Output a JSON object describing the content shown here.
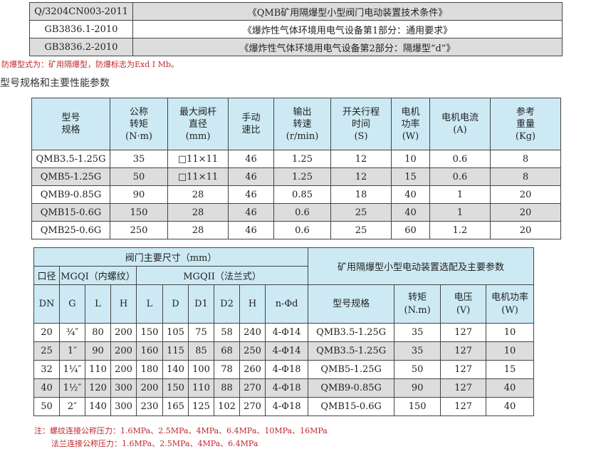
{
  "standards": [
    {
      "code": "Q/3204CN003-2011",
      "title": "《QMB矿用隔爆型小型阀门电动装置技术条件》"
    },
    {
      "code": "GB3836.1-2010",
      "title": "《爆炸性气体环境用电气设备第1部分：通用要求》"
    },
    {
      "code": "GB3836.2-2010",
      "title": "《爆炸性气体环境用电气设备第2部分：隔爆型“d”》"
    }
  ],
  "explosion_note": "防爆型式为：矿用隔爆型，防爆标志为Exd I  Mb。",
  "section_heading": "型号规格和主要性能参数",
  "perf_table": {
    "headers": [
      "型号\n规格",
      "公称\n转矩\n(N·m)",
      "最大阀杆\n直径\n(mm)",
      "手动\n速比",
      "输出\n转速\n(r/min)",
      "开关行程\n时间\n(S)",
      "电机\n功率\n(W)",
      "电机电流\n(A)",
      "参考\n重量\n(Kg)"
    ],
    "rows": [
      [
        "QMB3.5-1.25G",
        "35",
        "□11×11",
        "46",
        "1.25",
        "12",
        "10",
        "0.6",
        "8"
      ],
      [
        "QMB5-1.25G",
        "50",
        "□11×11",
        "46",
        "1.25",
        "12",
        "15",
        "0.6",
        "8"
      ],
      [
        "QMB9-0.85G",
        "90",
        "28",
        "46",
        "0.85",
        "18",
        "40",
        "1",
        "20"
      ],
      [
        "QMB15-0.6G",
        "150",
        "28",
        "46",
        "0.6",
        "25",
        "40",
        "1",
        "20"
      ],
      [
        "QMB25-0.6G",
        "250",
        "28",
        "46",
        "0.6",
        "25",
        "60",
        "1.2",
        "20"
      ]
    ]
  },
  "dim_table": {
    "group_title": "阀门主要尺寸（mm）",
    "selection_title": "矿用隔爆型小型电动装置选配及主要参数",
    "bore_label": "口径",
    "mgq1_label": "MGQI（内螺纹）",
    "mgq2_label": "MGQII（法兰式）",
    "headers": [
      "DN",
      "G",
      "L",
      "H",
      "L",
      "D",
      "D1",
      "D2",
      "H",
      "n-Φd",
      "型号规格",
      "转矩\n(N.m)",
      "电压\n(V)",
      "电机功率\n(W)"
    ],
    "rows": [
      [
        "20",
        "¾″",
        "80",
        "200",
        "150",
        "105",
        "75",
        "58",
        "240",
        "4-Φ14",
        "QMB3.5-1.25G",
        "35",
        "127",
        "10"
      ],
      [
        "25",
        "1″",
        "90",
        "200",
        "160",
        "115",
        "85",
        "68",
        "250",
        "4-Φ14",
        "QMB3.5-1.25G",
        "35",
        "127",
        "10"
      ],
      [
        "32",
        "1¼″",
        "110",
        "200",
        "180",
        "140",
        "100",
        "78",
        "260",
        "4-Φ18",
        "QMB5-1.25G",
        "50",
        "127",
        "15"
      ],
      [
        "40",
        "1½″",
        "120",
        "300",
        "200",
        "150",
        "110",
        "88",
        "270",
        "4-Φ18",
        "QMB9-0.85G",
        "90",
        "127",
        "40"
      ],
      [
        "50",
        "2″",
        "140",
        "300",
        "230",
        "165",
        "125",
        "102",
        "270",
        "4-Φ18",
        "QMB15-0.6G",
        "150",
        "127",
        "40"
      ]
    ]
  },
  "notes": [
    "注：螺纹连接公称压力：1.6MPa、2.5MPa、4MPa、6.4MPa、10MPa、16MPa",
    "法兰连接公称压力：1.6MPa、2.5MPa、4MPa、6.4MPa"
  ],
  "colors": {
    "header_bg": "#cdeaf4",
    "stripe_bg": "#dddddd",
    "note_red": "#c0282d"
  }
}
